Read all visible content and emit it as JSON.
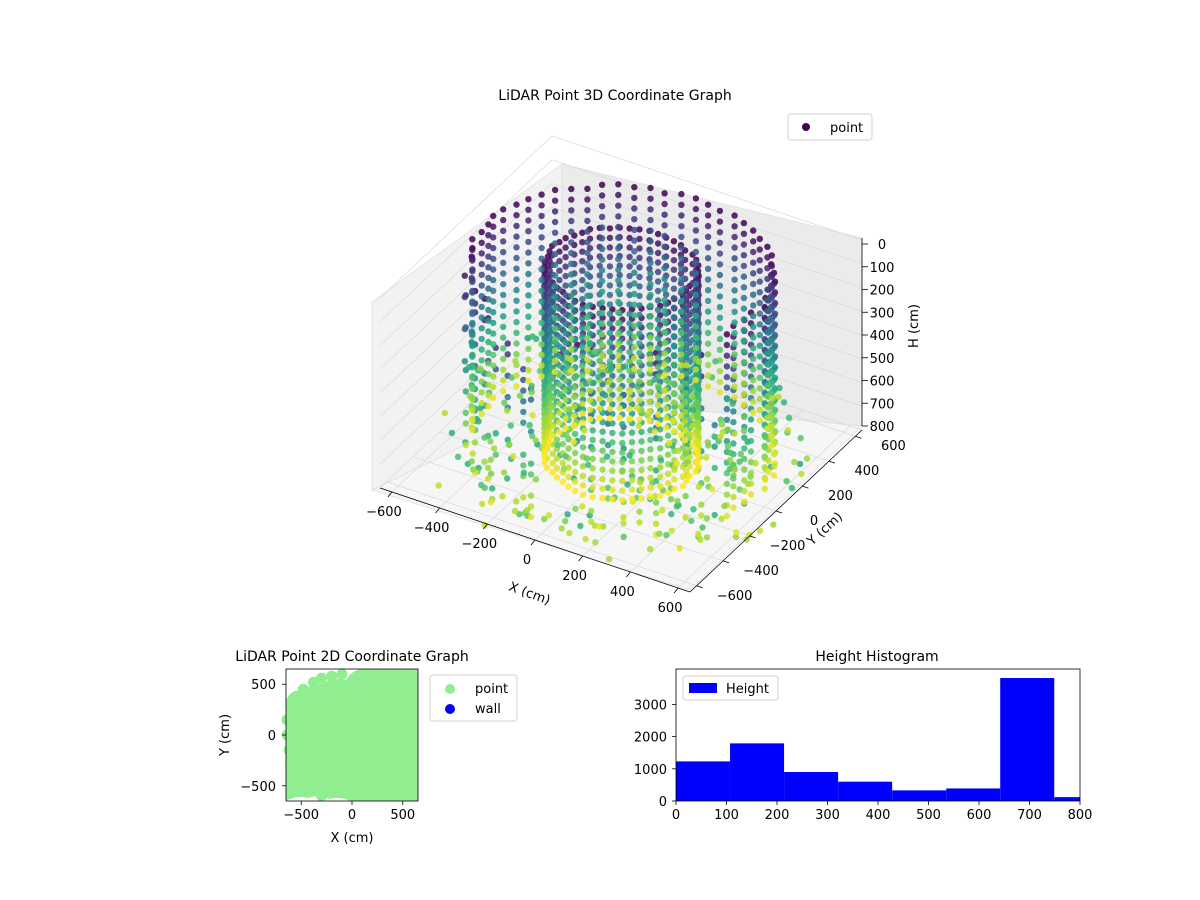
{
  "colors": {
    "hist_bar": "#0000ff",
    "scatter2d_point": "#90ee90",
    "scatter2d_wall": "#0000ff",
    "colormap": "viridis",
    "legend3d_marker": "#440154"
  },
  "chart_data": [
    {
      "type": "scatter",
      "projection": "3d",
      "title": "LiDAR Point 3D Coordinate Graph",
      "xlabel": "X (cm)",
      "ylabel": "Y (cm)",
      "zlabel": "H (cm)",
      "xlim": [
        -650,
        650
      ],
      "ylim": [
        -650,
        650
      ],
      "zlim": [
        800,
        0
      ],
      "xticks": [
        "−600",
        "−400",
        "−200",
        "0",
        "200",
        "400",
        "600"
      ],
      "yticks": [
        "−600",
        "−400",
        "−200",
        "0",
        "200",
        "400",
        "600"
      ],
      "zticks": [
        "0",
        "100",
        "200",
        "300",
        "400",
        "500",
        "600",
        "700",
        "800"
      ],
      "legend": {
        "placement": "upper-right",
        "entries": [
          "point"
        ]
      },
      "grid": true,
      "colormap": "viridis",
      "note_series": "point cloud: inner cylinder radius ~280 cm and outer wall ring radius ~560 cm spanning heights 0-800 cm, plus scattered floor points"
    },
    {
      "type": "scatter",
      "title": "LiDAR Point 2D Coordinate Graph",
      "xlabel": "X (cm)",
      "ylabel": "Y (cm)",
      "xlim": [
        -650,
        650
      ],
      "ylim": [
        -650,
        650
      ],
      "xticks": [
        "−500",
        "0",
        "500"
      ],
      "yticks": [
        "500",
        "0",
        "−500"
      ],
      "legend": {
        "placement": "outside-right",
        "entries": [
          "point",
          "wall"
        ]
      },
      "series": [
        {
          "name": "point",
          "color": "#90ee90"
        },
        {
          "name": "wall",
          "color": "#0000ff"
        }
      ]
    },
    {
      "type": "bar",
      "title": "Height Histogram",
      "xlim": [
        0,
        800
      ],
      "ylim": [
        0,
        4100
      ],
      "xticks": [
        "0",
        "100",
        "200",
        "300",
        "400",
        "500",
        "600",
        "700",
        "800"
      ],
      "yticks": [
        "0",
        "1000",
        "2000",
        "3000"
      ],
      "legend": {
        "placement": "upper-left",
        "entries": [
          "Height"
        ]
      },
      "bin_edges": [
        0,
        107,
        214,
        321,
        428,
        535,
        642,
        749,
        856
      ],
      "values": [
        1230,
        1790,
        900,
        600,
        330,
        390,
        3820,
        120
      ],
      "series": [
        {
          "name": "Height"
        }
      ]
    }
  ]
}
